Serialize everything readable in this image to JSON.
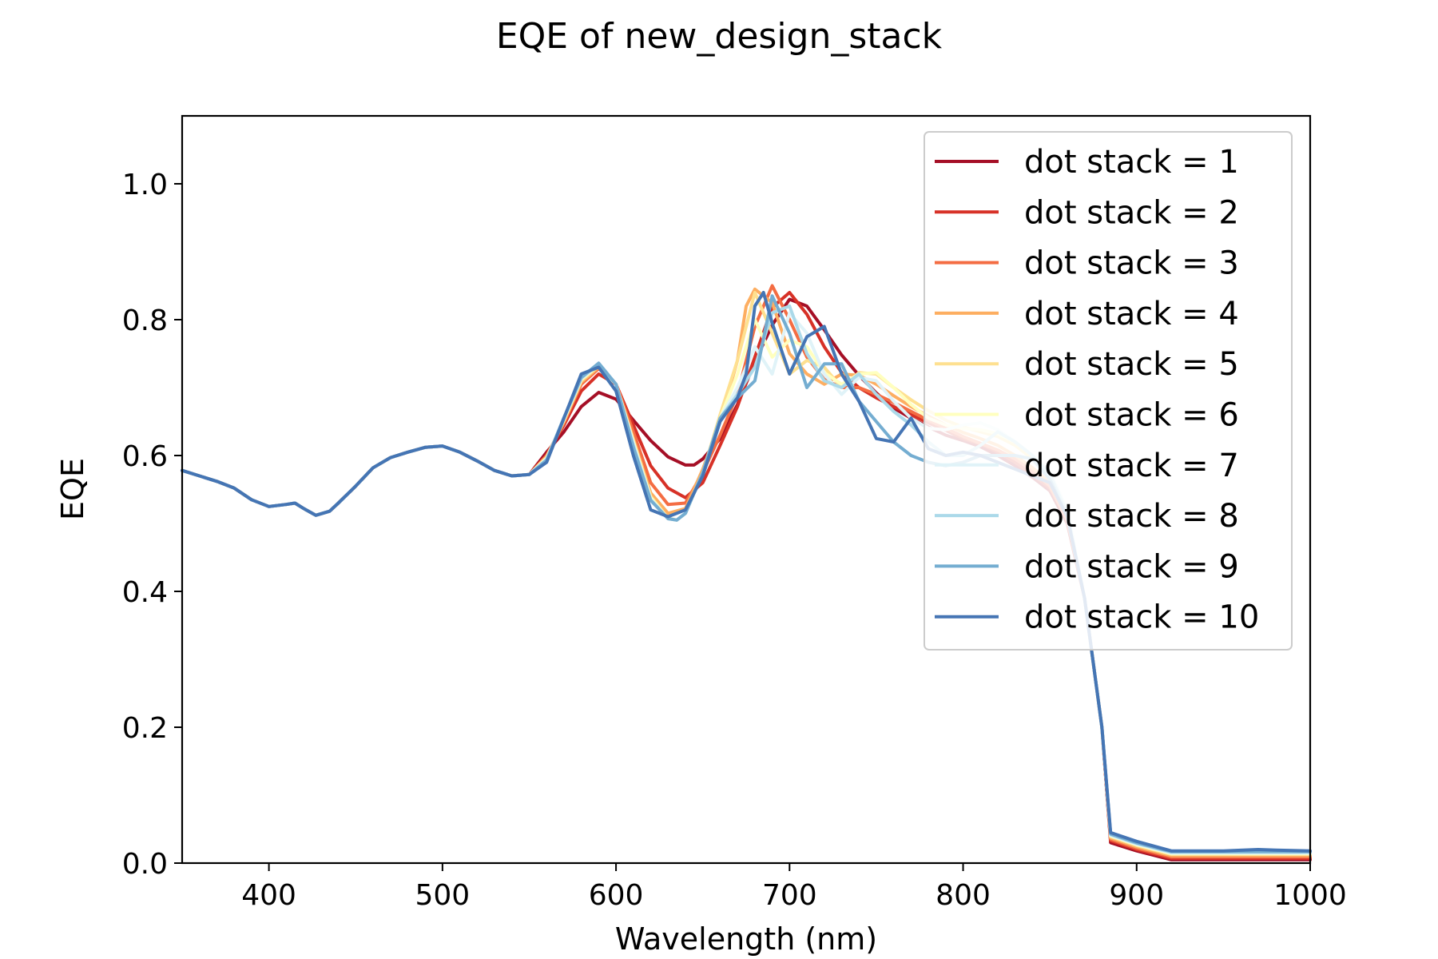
{
  "chart_data": {
    "type": "line",
    "title": "EQE of  new_design_stack",
    "xlabel": "Wavelength (nm)",
    "ylabel": "EQE",
    "xlim": [
      350,
      1000
    ],
    "ylim": [
      0,
      1.1
    ],
    "xticks": [
      "400",
      "500",
      "600",
      "700",
      "800",
      "900",
      "1000"
    ],
    "yticks": [
      "0.0",
      "0.2",
      "0.4",
      "0.6",
      "0.8",
      "1.0"
    ],
    "grid": false,
    "legend_position": "top-right",
    "base": {
      "x": [
        350,
        360,
        370,
        380,
        390,
        400,
        410,
        415,
        420,
        427,
        435,
        440,
        450,
        460,
        470,
        480,
        490,
        500,
        510,
        520,
        530,
        540,
        550
      ],
      "y": [
        0.578,
        0.57,
        0.562,
        0.552,
        0.535,
        0.525,
        0.528,
        0.53,
        0.522,
        0.512,
        0.518,
        0.53,
        0.555,
        0.582,
        0.597,
        0.605,
        0.612,
        0.614,
        0.605,
        0.592,
        0.578,
        0.57,
        0.572
      ]
    },
    "series": [
      {
        "name": "dot stack = 1",
        "color": "#a50f26",
        "x": [
          550,
          560,
          570,
          580,
          590,
          600,
          610,
          620,
          630,
          640,
          645,
          650,
          660,
          670,
          680,
          690,
          700,
          710,
          720,
          730,
          740,
          750,
          760,
          770,
          780,
          790,
          800,
          810,
          820,
          830,
          840,
          850,
          860,
          870,
          880,
          885,
          900,
          920,
          950,
          1000
        ],
        "y": [
          0.585,
          0.605,
          0.635,
          0.672,
          0.693,
          0.683,
          0.652,
          0.622,
          0.598,
          0.586,
          0.586,
          0.595,
          0.625,
          0.675,
          0.738,
          0.792,
          0.83,
          0.82,
          0.785,
          0.748,
          0.718,
          0.692,
          0.67,
          0.655,
          0.642,
          0.63,
          0.622,
          0.613,
          0.6,
          0.585,
          0.568,
          0.548,
          0.5,
          0.39,
          0.2,
          0.03,
          0.018,
          0.005,
          0.005,
          0.005
        ]
      },
      {
        "name": "dot stack = 2",
        "color": "#d73127",
        "x": [
          550,
          560,
          570,
          580,
          590,
          600,
          610,
          620,
          630,
          640,
          650,
          660,
          670,
          680,
          690,
          700,
          710,
          720,
          730,
          740,
          750,
          760,
          770,
          780,
          790,
          800,
          810,
          820,
          830,
          840,
          850,
          860,
          870,
          880,
          885,
          900,
          920,
          950,
          1000
        ],
        "y": [
          0.58,
          0.6,
          0.645,
          0.695,
          0.72,
          0.705,
          0.645,
          0.585,
          0.552,
          0.538,
          0.56,
          0.615,
          0.672,
          0.745,
          0.818,
          0.84,
          0.808,
          0.76,
          0.722,
          0.7,
          0.685,
          0.672,
          0.66,
          0.648,
          0.637,
          0.625,
          0.617,
          0.605,
          0.59,
          0.572,
          0.552,
          0.505,
          0.39,
          0.2,
          0.033,
          0.02,
          0.007,
          0.007,
          0.007
        ]
      },
      {
        "name": "dot stack = 3",
        "color": "#f46d43",
        "x": [
          550,
          560,
          570,
          580,
          590,
          600,
          610,
          620,
          630,
          640,
          650,
          660,
          670,
          680,
          690,
          700,
          710,
          720,
          730,
          740,
          750,
          760,
          770,
          780,
          790,
          800,
          810,
          820,
          830,
          840,
          850,
          860,
          870,
          880,
          885,
          900,
          920,
          950,
          1000
        ],
        "y": [
          0.578,
          0.6,
          0.648,
          0.705,
          0.728,
          0.705,
          0.635,
          0.56,
          0.528,
          0.53,
          0.575,
          0.63,
          0.69,
          0.79,
          0.85,
          0.8,
          0.745,
          0.712,
          0.7,
          0.7,
          0.69,
          0.678,
          0.665,
          0.652,
          0.64,
          0.628,
          0.618,
          0.608,
          0.595,
          0.578,
          0.555,
          0.505,
          0.39,
          0.2,
          0.035,
          0.022,
          0.009,
          0.009,
          0.009
        ]
      },
      {
        "name": "dot stack = 4",
        "color": "#fdae61",
        "x": [
          550,
          560,
          570,
          580,
          590,
          600,
          610,
          620,
          630,
          640,
          650,
          660,
          670,
          675,
          680,
          690,
          700,
          710,
          720,
          730,
          740,
          750,
          760,
          770,
          780,
          790,
          800,
          810,
          820,
          830,
          840,
          850,
          860,
          870,
          880,
          885,
          900,
          920,
          950,
          1000
        ],
        "y": [
          0.575,
          0.598,
          0.65,
          0.708,
          0.73,
          0.705,
          0.625,
          0.545,
          0.515,
          0.522,
          0.58,
          0.65,
          0.74,
          0.82,
          0.845,
          0.825,
          0.75,
          0.72,
          0.705,
          0.72,
          0.718,
          0.705,
          0.688,
          0.672,
          0.658,
          0.645,
          0.634,
          0.625,
          0.615,
          0.6,
          0.582,
          0.56,
          0.51,
          0.39,
          0.2,
          0.037,
          0.024,
          0.011,
          0.011,
          0.011
        ]
      },
      {
        "name": "dot stack = 5",
        "color": "#fee090",
        "x": [
          550,
          560,
          570,
          580,
          590,
          600,
          610,
          620,
          630,
          635,
          640,
          650,
          660,
          670,
          680,
          690,
          700,
          710,
          720,
          730,
          740,
          750,
          760,
          770,
          780,
          790,
          800,
          810,
          820,
          830,
          840,
          850,
          860,
          870,
          880,
          885,
          900,
          920,
          950,
          1000
        ],
        "y": [
          0.573,
          0.597,
          0.652,
          0.71,
          0.732,
          0.705,
          0.622,
          0.54,
          0.508,
          0.505,
          0.515,
          0.575,
          0.66,
          0.74,
          0.84,
          0.78,
          0.72,
          0.74,
          0.73,
          0.7,
          0.722,
          0.72,
          0.7,
          0.682,
          0.666,
          0.652,
          0.642,
          0.635,
          0.628,
          0.615,
          0.595,
          0.57,
          0.515,
          0.39,
          0.2,
          0.039,
          0.026,
          0.013,
          0.013,
          0.013
        ]
      },
      {
        "name": "dot stack = 6",
        "color": "#ffffbf",
        "x": [
          550,
          560,
          570,
          580,
          590,
          600,
          610,
          620,
          630,
          635,
          640,
          650,
          660,
          670,
          680,
          690,
          700,
          710,
          720,
          730,
          740,
          750,
          760,
          770,
          780,
          790,
          800,
          810,
          820,
          830,
          840,
          850,
          860,
          870,
          880,
          885,
          900,
          920,
          950,
          1000
        ],
        "y": [
          0.572,
          0.596,
          0.653,
          0.712,
          0.733,
          0.705,
          0.62,
          0.538,
          0.507,
          0.505,
          0.515,
          0.575,
          0.655,
          0.72,
          0.8,
          0.745,
          0.77,
          0.76,
          0.722,
          0.705,
          0.72,
          0.722,
          0.7,
          0.675,
          0.655,
          0.645,
          0.64,
          0.638,
          0.632,
          0.62,
          0.6,
          0.575,
          0.52,
          0.39,
          0.2,
          0.04,
          0.027,
          0.014,
          0.014,
          0.014
        ]
      },
      {
        "name": "dot stack = 7",
        "color": "#e0f3f8",
        "x": [
          550,
          560,
          570,
          580,
          590,
          600,
          610,
          620,
          630,
          635,
          640,
          650,
          660,
          670,
          680,
          690,
          700,
          710,
          720,
          730,
          740,
          750,
          760,
          770,
          780,
          790,
          800,
          810,
          820,
          830,
          840,
          850,
          860,
          870,
          880,
          885,
          900,
          920,
          950,
          1000
        ],
        "y": [
          0.571,
          0.595,
          0.654,
          0.713,
          0.734,
          0.705,
          0.618,
          0.536,
          0.507,
          0.505,
          0.515,
          0.575,
          0.655,
          0.7,
          0.76,
          0.72,
          0.81,
          0.78,
          0.72,
          0.69,
          0.715,
          0.71,
          0.68,
          0.655,
          0.64,
          0.638,
          0.645,
          0.648,
          0.638,
          0.62,
          0.6,
          0.575,
          0.52,
          0.39,
          0.2,
          0.041,
          0.028,
          0.015,
          0.015,
          0.015
        ]
      },
      {
        "name": "dot stack = 8",
        "color": "#abd9e9",
        "x": [
          550,
          560,
          570,
          580,
          590,
          600,
          610,
          620,
          630,
          635,
          640,
          650,
          660,
          670,
          680,
          690,
          700,
          710,
          720,
          730,
          740,
          750,
          760,
          770,
          780,
          790,
          800,
          810,
          820,
          830,
          840,
          850,
          860,
          870,
          880,
          885,
          900,
          920,
          950,
          1000
        ],
        "y": [
          0.57,
          0.594,
          0.655,
          0.714,
          0.735,
          0.705,
          0.615,
          0.535,
          0.507,
          0.505,
          0.515,
          0.575,
          0.655,
          0.69,
          0.73,
          0.81,
          0.82,
          0.75,
          0.71,
          0.7,
          0.72,
          0.69,
          0.665,
          0.645,
          0.62,
          0.6,
          0.6,
          0.615,
          0.635,
          0.62,
          0.6,
          0.572,
          0.515,
          0.39,
          0.2,
          0.042,
          0.029,
          0.016,
          0.016,
          0.016
        ]
      },
      {
        "name": "dot stack = 9",
        "color": "#74add1",
        "x": [
          550,
          560,
          570,
          580,
          590,
          600,
          610,
          620,
          630,
          635,
          640,
          650,
          660,
          670,
          680,
          690,
          700,
          710,
          720,
          730,
          740,
          750,
          760,
          770,
          780,
          790,
          800,
          810,
          820,
          830,
          840,
          850,
          860,
          870,
          880,
          885,
          900,
          920,
          950,
          1000
        ],
        "y": [
          0.568,
          0.593,
          0.656,
          0.715,
          0.736,
          0.705,
          0.612,
          0.534,
          0.507,
          0.505,
          0.515,
          0.575,
          0.655,
          0.685,
          0.71,
          0.835,
          0.78,
          0.7,
          0.735,
          0.735,
          0.68,
          0.65,
          0.62,
          0.6,
          0.59,
          0.585,
          0.59,
          0.6,
          0.6,
          0.6,
          0.595,
          0.565,
          0.51,
          0.39,
          0.2,
          0.043,
          0.03,
          0.017,
          0.017,
          0.017
        ]
      },
      {
        "name": "dot stack = 10",
        "color": "#4575b4",
        "x": [
          550,
          560,
          570,
          580,
          590,
          600,
          610,
          620,
          630,
          640,
          650,
          660,
          670,
          675,
          680,
          685,
          690,
          700,
          710,
          720,
          730,
          740,
          750,
          760,
          770,
          780,
          790,
          800,
          810,
          820,
          830,
          840,
          850,
          860,
          870,
          880,
          885,
          900,
          920,
          950,
          970,
          980,
          1000
        ],
        "y": [
          0.565,
          0.59,
          0.655,
          0.72,
          0.73,
          0.695,
          0.6,
          0.52,
          0.51,
          0.52,
          0.57,
          0.65,
          0.685,
          0.72,
          0.82,
          0.84,
          0.795,
          0.72,
          0.775,
          0.79,
          0.72,
          0.68,
          0.625,
          0.62,
          0.655,
          0.61,
          0.6,
          0.605,
          0.6,
          0.59,
          0.58,
          0.57,
          0.56,
          0.51,
          0.39,
          0.2,
          0.045,
          0.032,
          0.018,
          0.018,
          0.02,
          0.019,
          0.018
        ]
      }
    ]
  }
}
